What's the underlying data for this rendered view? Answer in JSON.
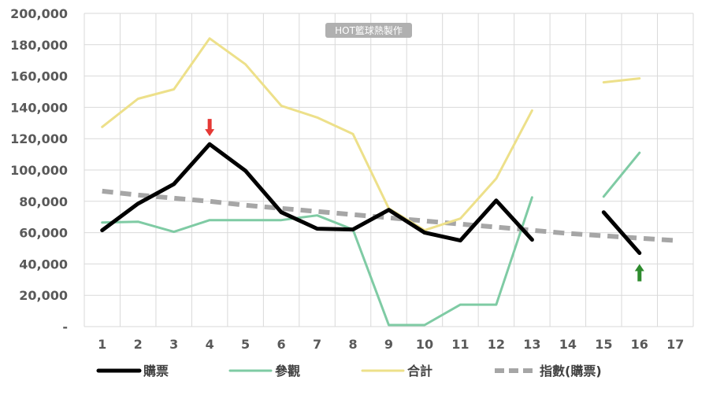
{
  "chart_data": {
    "type": "line",
    "watermark": "HOT籃球熱製作",
    "x": [
      1,
      2,
      3,
      4,
      5,
      6,
      7,
      8,
      9,
      10,
      11,
      12,
      13,
      14,
      15,
      16,
      17
    ],
    "y_ticks": [
      0,
      20000,
      40000,
      60000,
      80000,
      100000,
      120000,
      140000,
      160000,
      180000,
      200000
    ],
    "y_tick_labels": [
      "-",
      "20,000",
      "40,000",
      "60,000",
      "80,000",
      "100,000",
      "120,000",
      "140,000",
      "160,000",
      "180,000",
      "200,000"
    ],
    "ylim": [
      0,
      200000
    ],
    "grid": true,
    "legend_position": "bottom",
    "series": [
      {
        "name": "購票",
        "color": "#000000",
        "style": "solid",
        "values": [
          61500,
          78500,
          91000,
          116500,
          99500,
          73000,
          62500,
          62000,
          74500,
          60000,
          55000,
          80500,
          55500,
          null,
          73000,
          47000,
          null
        ]
      },
      {
        "name": "參觀",
        "color": "#7fcba4",
        "style": "solid",
        "values": [
          66500,
          67000,
          60500,
          68000,
          68000,
          68000,
          71000,
          62000,
          1000,
          1000,
          14000,
          14000,
          82500,
          null,
          83000,
          111000,
          null
        ]
      },
      {
        "name": "合計",
        "color": "#ede08a",
        "style": "solid",
        "values": [
          127500,
          145500,
          151500,
          184000,
          167500,
          141000,
          133500,
          123000,
          75500,
          61500,
          69000,
          94500,
          138000,
          null,
          156000,
          158500,
          null
        ]
      },
      {
        "name": "指數(購票)",
        "color": "#a6a6a6",
        "style": "dashed",
        "values": [
          86500,
          84000,
          82000,
          80000,
          77500,
          75500,
          73500,
          71500,
          69500,
          67500,
          65500,
          63500,
          61500,
          59500,
          58000,
          56500,
          55000
        ]
      }
    ],
    "markers": [
      {
        "name": "red-down-arrow",
        "color": "#e53935",
        "x": 4,
        "direction": "down"
      },
      {
        "name": "green-up-arrow",
        "color": "#2e8b2e",
        "x": 16,
        "direction": "up"
      }
    ]
  }
}
